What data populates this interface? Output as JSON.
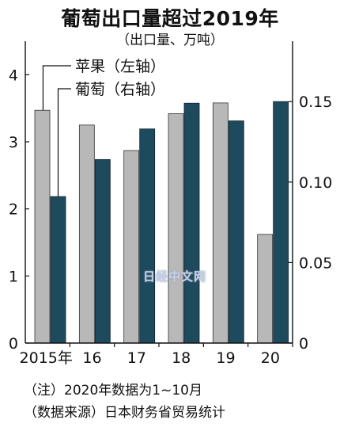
{
  "title": "葡萄出口量超过2019年",
  "subtitle": "（出口量、万吨）",
  "colors": {
    "apple": "#b8b8b8",
    "grape": "#1e4a5e",
    "axis": "#111111"
  },
  "chart_data": {
    "type": "bar",
    "categories": [
      "2015年",
      "16",
      "17",
      "18",
      "19",
      "20"
    ],
    "series": [
      {
        "name": "苹果（左轴）",
        "axis": "left",
        "values": [
          3.47,
          3.25,
          2.87,
          3.42,
          3.58,
          1.62
        ]
      },
      {
        "name": "葡萄（右轴）",
        "axis": "right",
        "values": [
          0.091,
          0.114,
          0.133,
          0.149,
          0.138,
          0.15
        ]
      }
    ],
    "y_left": {
      "ylim": [
        0,
        4.5
      ],
      "ticks": [
        "0",
        "1",
        "2",
        "3",
        "4"
      ]
    },
    "y_right": {
      "ylim": [
        0,
        0.1875
      ],
      "ticks": [
        "0",
        "0.05",
        "0.10",
        "0.15"
      ]
    },
    "grid": false,
    "legend": "top-left, with leader lines"
  },
  "notes": {
    "note1": "（注）2020年数据为1~10月",
    "note2": "（数据来源）日本财务省贸易统计"
  },
  "watermark": "日经中文网"
}
